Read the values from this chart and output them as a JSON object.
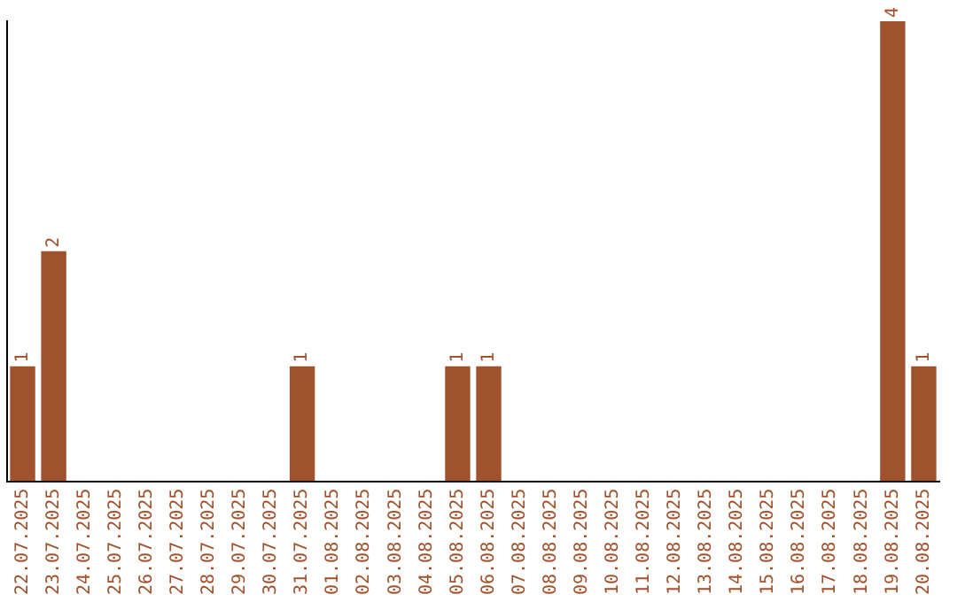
{
  "chart_data": {
    "type": "bar",
    "categories": [
      "22.07.2025",
      "23.07.2025",
      "24.07.2025",
      "25.07.2025",
      "26.07.2025",
      "27.07.2025",
      "28.07.2025",
      "29.07.2025",
      "30.07.2025",
      "31.07.2025",
      "01.08.2025",
      "02.08.2025",
      "03.08.2025",
      "04.08.2025",
      "05.08.2025",
      "06.08.2025",
      "07.08.2025",
      "08.08.2025",
      "09.08.2025",
      "10.08.2025",
      "11.08.2025",
      "12.08.2025",
      "13.08.2025",
      "14.08.2025",
      "15.08.2025",
      "16.08.2025",
      "17.08.2025",
      "18.08.2025",
      "19.08.2025",
      "20.08.2025"
    ],
    "values": [
      1,
      2,
      0,
      0,
      0,
      0,
      0,
      0,
      0,
      1,
      0,
      0,
      0,
      0,
      1,
      1,
      0,
      0,
      0,
      0,
      0,
      0,
      0,
      0,
      0,
      0,
      0,
      0,
      4,
      1
    ],
    "value_labels": [
      "1",
      "2",
      null,
      null,
      null,
      null,
      null,
      null,
      null,
      "1",
      null,
      null,
      null,
      null,
      "1",
      "1",
      null,
      null,
      null,
      null,
      null,
      null,
      null,
      null,
      null,
      null,
      null,
      null,
      "4",
      "1"
    ],
    "color": "#a0522d",
    "grid": false,
    "legend": false,
    "tick_labels": "x"
  }
}
